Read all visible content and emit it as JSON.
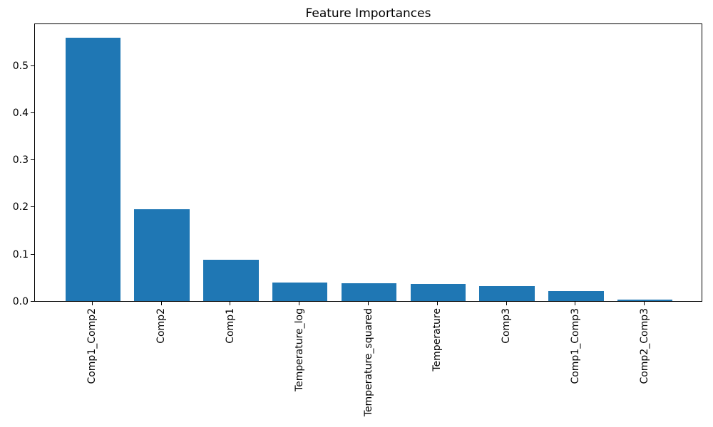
{
  "figure": {
    "background": "#ffffff",
    "text_color": "#000000"
  },
  "chart_data": {
    "type": "bar",
    "title": "Feature Importances",
    "categories": [
      "Comp1_Comp2",
      "Comp2",
      "Comp1",
      "Temperature_log",
      "Temperature_squared",
      "Temperature",
      "Comp3",
      "Comp1_Comp3",
      "Comp2_Comp3"
    ],
    "values": [
      0.558,
      0.195,
      0.087,
      0.039,
      0.037,
      0.036,
      0.031,
      0.021,
      0.003
    ],
    "bar_color": "#1f77b4",
    "xlabel": "",
    "ylabel": "",
    "ylim": [
      0,
      0.59
    ],
    "yticks": [
      0.0,
      0.1,
      0.2,
      0.3,
      0.4,
      0.5
    ],
    "ytick_labels": [
      "0.0",
      "0.1",
      "0.2",
      "0.3",
      "0.4",
      "0.5"
    ],
    "xtick_rotation": 90,
    "grid": false,
    "legend": null
  }
}
